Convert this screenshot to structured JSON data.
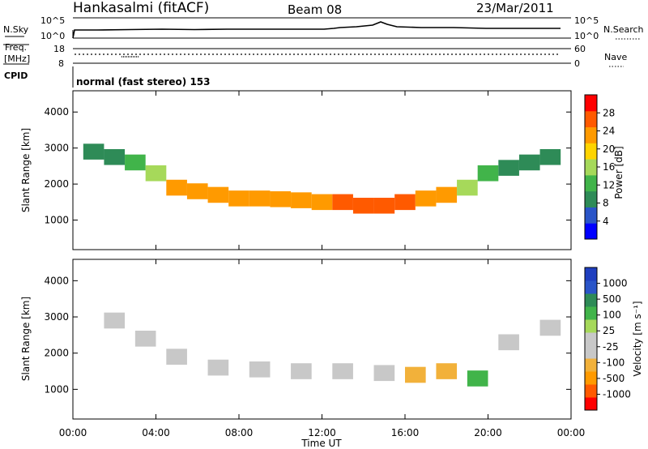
{
  "header": {
    "station": "Hankasalmi (fitACF)",
    "beam": "Beam 08",
    "date": "23/Mar/2011"
  },
  "strips": {
    "nsky_label": "N.Sky",
    "nsky_ticks": [
      "10^5",
      "10^0"
    ],
    "nsearch_label": "N.Search",
    "freq_label_1": "Freq.",
    "freq_label_2": "[MHz]",
    "freq_ticks": [
      "18",
      "8"
    ],
    "nave_ticks": [
      "60",
      "0"
    ],
    "nave_label": "Nave",
    "cpid_label": "CPID",
    "cpid_text": "normal (fast stereo) 153"
  },
  "colors": {
    "power": [
      "#0000ff",
      "#2a55c8",
      "#2e8b57",
      "#41b44a",
      "#a6d95a",
      "#ffd400",
      "#ff9a00",
      "#ff5a00",
      "#ff0000"
    ],
    "velocity": [
      "#ff0000",
      "#ff5a00",
      "#ff9a00",
      "#f2b13a",
      "#c8c8c8",
      "#c8c8c8",
      "#a6d95a",
      "#41b44a",
      "#2e8b57",
      "#2a55c8",
      "#1f3fbf"
    ]
  },
  "chart_data": [
    {
      "type": "heatmap",
      "title": "",
      "xlabel": "Time UT",
      "ylabel": "Slant Range [km]",
      "x_ticks": [
        "00:00",
        "04:00",
        "08:00",
        "12:00",
        "16:00",
        "20:00",
        "00:00"
      ],
      "y_ticks": [
        "1000",
        "2000",
        "3000",
        "4000"
      ],
      "ylim": [
        180,
        4590
      ],
      "colorbar_label": "Power [dB]",
      "colorbar_ticks": [
        "4",
        "8",
        "12",
        "16",
        "20",
        "24",
        "28"
      ],
      "clim": [
        0,
        30
      ],
      "series": [
        {
          "x_hours": [
            1.0,
            2.0,
            3.0,
            4.0,
            5.0,
            6.0,
            7.0,
            8.0,
            9.0,
            10.0,
            11.0,
            12.0,
            13.0,
            14.0,
            15.0,
            16.0,
            17.0,
            18.0,
            19.0,
            20.0,
            21.0,
            22.0,
            23.0
          ],
          "range_km": [
            2900,
            2750,
            2600,
            2300,
            1900,
            1800,
            1700,
            1600,
            1600,
            1580,
            1550,
            1500,
            1500,
            1400,
            1400,
            1500,
            1600,
            1700,
            1900,
            2300,
            2450,
            2600,
            2750
          ],
          "power_db": [
            8,
            8,
            10,
            14,
            20,
            22,
            22,
            22,
            22,
            23,
            22,
            23,
            24,
            26,
            26,
            24,
            22,
            20,
            16,
            10,
            8,
            8,
            8
          ]
        }
      ]
    },
    {
      "type": "heatmap",
      "title": "",
      "xlabel": "Time UT",
      "ylabel": "Slant Range [km]",
      "x_ticks": [
        "00:00",
        "04:00",
        "08:00",
        "12:00",
        "16:00",
        "20:00",
        "00:00"
      ],
      "y_ticks": [
        "1000",
        "2000",
        "3000",
        "4000"
      ],
      "ylim": [
        180,
        4590
      ],
      "colorbar_label": "Velocity [m s⁻¹]",
      "colorbar_ticks": [
        "1000",
        "500",
        "100",
        "25",
        "-25",
        "-100",
        "-500",
        "-1000"
      ],
      "clim": [
        -1000,
        1000
      ],
      "series": [
        {
          "x_hours": [
            2.0,
            3.5,
            5.0,
            7.0,
            9.0,
            11.0,
            13.0,
            15.0,
            16.5,
            18.0,
            19.5,
            21.0,
            23.0
          ],
          "range_km": [
            2900,
            2400,
            1900,
            1600,
            1550,
            1500,
            1500,
            1450,
            1400,
            1500,
            1300,
            2300,
            2700
          ],
          "velocity": [
            0,
            -50,
            -100,
            0,
            -150,
            0,
            0,
            -200,
            -300,
            -400,
            300,
            0,
            0
          ]
        }
      ]
    }
  ]
}
